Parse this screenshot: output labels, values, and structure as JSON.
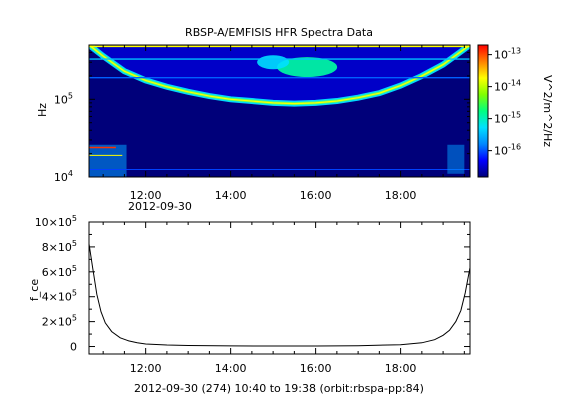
{
  "chart_data": [
    {
      "type": "heatmap",
      "title": "RBSP-A/EMFISIS  HFR Spectra Data",
      "ylabel": "Hz",
      "ylog": true,
      "yrange": [
        10000,
        500000
      ],
      "yticks": [
        {
          "base": "10",
          "exp": "4",
          "value": 10000
        },
        {
          "base": "10",
          "exp": "5",
          "value": 100000
        }
      ],
      "xticks": [
        "12:00",
        "14:00",
        "16:00",
        "18:00"
      ],
      "xtick_hours": [
        12,
        14,
        16,
        18
      ],
      "xrange_hours": [
        10.6667,
        19.6333
      ],
      "date_label": "2012-09-30",
      "colorbar": {
        "label": "V^2/m^2/Hz",
        "log": true,
        "range": [
          1.5e-17,
          2e-13
        ],
        "ticks": [
          {
            "base": "10",
            "exp": "-13",
            "value": 1e-13
          },
          {
            "base": "10",
            "exp": "-14",
            "value": 1e-14
          },
          {
            "base": "10",
            "exp": "-15",
            "value": 1e-15
          },
          {
            "base": "10",
            "exp": "-16",
            "value": 1e-16
          }
        ],
        "colors": [
          "#00007a",
          "#0000ff",
          "#0088ff",
          "#00e0ff",
          "#00ff80",
          "#80ff00",
          "#ffff00",
          "#ff8000",
          "#ff0000"
        ]
      },
      "features": {
        "upper_band_hz": [
          480000,
          330000,
          190000
        ],
        "cutoff_curve": [
          [
            10.67,
            500000
          ],
          [
            11.0,
            360000
          ],
          [
            11.5,
            230000
          ],
          [
            12.0,
            175000
          ],
          [
            12.5,
            145000
          ],
          [
            13.0,
            125000
          ],
          [
            13.5,
            110000
          ],
          [
            14.0,
            100000
          ],
          [
            14.5,
            95000
          ],
          [
            15.0,
            90000
          ],
          [
            15.5,
            88000
          ],
          [
            16.0,
            90000
          ],
          [
            16.5,
            95000
          ],
          [
            17.0,
            105000
          ],
          [
            17.5,
            120000
          ],
          [
            18.0,
            150000
          ],
          [
            18.5,
            200000
          ],
          [
            19.0,
            280000
          ],
          [
            19.63,
            500000
          ]
        ]
      }
    },
    {
      "type": "line",
      "title": "",
      "ylabel": "f_ce",
      "yrange": [
        -60000,
        1000000
      ],
      "yticks": [
        {
          "mant": "10",
          "base": "10",
          "exp": "5",
          "value": 1000000
        },
        {
          "mant": "8",
          "base": "10",
          "exp": "5",
          "value": 800000
        },
        {
          "mant": "6",
          "base": "10",
          "exp": "5",
          "value": 600000
        },
        {
          "mant": "4",
          "base": "10",
          "exp": "5",
          "value": 400000
        },
        {
          "mant": "2",
          "base": "10",
          "exp": "5",
          "value": 200000
        },
        {
          "mant": "0",
          "base": "",
          "exp": "",
          "value": 0
        }
      ],
      "xticks": [
        "12:00",
        "14:00",
        "16:00",
        "18:00"
      ],
      "xtick_hours": [
        12,
        14,
        16,
        18
      ],
      "xrange_hours": [
        10.6667,
        19.6333
      ],
      "xlabel": "2012-09-30 (274) 10:40 to 19:38 (orbit:rbspa-pp:84)",
      "x": [
        10.67,
        10.75,
        10.85,
        10.95,
        11.05,
        11.2,
        11.4,
        11.6,
        11.8,
        12.0,
        12.5,
        13.0,
        14.0,
        15.0,
        16.0,
        17.0,
        18.0,
        18.5,
        18.8,
        19.0,
        19.15,
        19.3,
        19.42,
        19.52,
        19.63
      ],
      "y": [
        820000,
        640000,
        420000,
        280000,
        190000,
        120000,
        70000,
        45000,
        30000,
        20000,
        12000,
        8000,
        5000,
        4000,
        4500,
        7000,
        15000,
        30000,
        55000,
        90000,
        130000,
        200000,
        290000,
        430000,
        630000
      ]
    }
  ]
}
